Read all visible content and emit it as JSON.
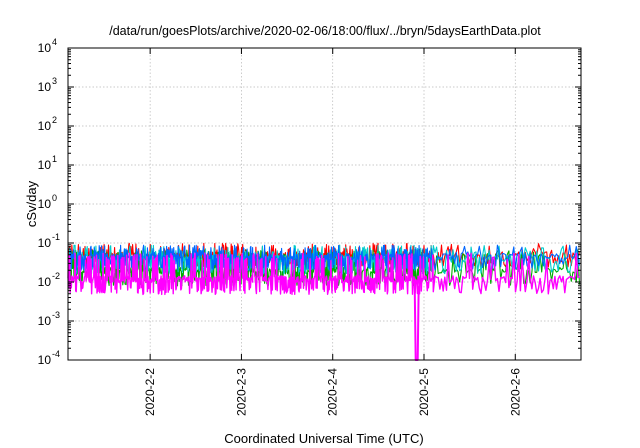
{
  "chart_data": {
    "type": "line",
    "title": "/data/run/goesPlots/archive/2020-02-06/18:00/flux/../bryn/5daysEarthData.plot",
    "xlabel": "Coordinated Universal Time (UTC)",
    "ylabel": "cSv/day",
    "yscale": "log",
    "xlim": [
      1.1,
      6.72
    ],
    "ylim": [
      0.0001,
      10000
    ],
    "x_ticks": [
      {
        "value": 2,
        "label": "2020-2-2"
      },
      {
        "value": 3,
        "label": "2020-2-3"
      },
      {
        "value": 4,
        "label": "2020-2-4"
      },
      {
        "value": 5,
        "label": "2020-2-5"
      },
      {
        "value": 6,
        "label": "2020-2-6"
      }
    ],
    "y_ticks": [
      {
        "value": 0.0001,
        "base": "10",
        "exp": "-4"
      },
      {
        "value": 0.001,
        "base": "10",
        "exp": "-3"
      },
      {
        "value": 0.01,
        "base": "10",
        "exp": "-2"
      },
      {
        "value": 0.1,
        "base": "10",
        "exp": "-1"
      },
      {
        "value": 1,
        "base": "10",
        "exp": "0"
      },
      {
        "value": 10,
        "base": "10",
        "exp": "1"
      },
      {
        "value": 100,
        "base": "10",
        "exp": "2"
      },
      {
        "value": 1000,
        "base": "10",
        "exp": "3"
      },
      {
        "value": 10000,
        "base": "10",
        "exp": "4"
      }
    ],
    "grid": true,
    "series": [
      {
        "color": "#ff0000",
        "base": 0.05,
        "low": 0.03,
        "spike": 0.09
      },
      {
        "color": "#00aa00",
        "base": 0.02,
        "low": 0.01,
        "spike": 0.06
      },
      {
        "color": "#00cccc",
        "base": 0.04,
        "low": 0.02,
        "spike": 0.08
      },
      {
        "color": "#0066ff",
        "base": 0.045,
        "low": 0.025,
        "spike": 0.08
      },
      {
        "color": "#ff00ff",
        "base": 0.012,
        "low": 0.006,
        "spike": 0.05
      }
    ],
    "dropouts": [
      {
        "x": 4.92,
        "min": 0.0001
      }
    ]
  }
}
